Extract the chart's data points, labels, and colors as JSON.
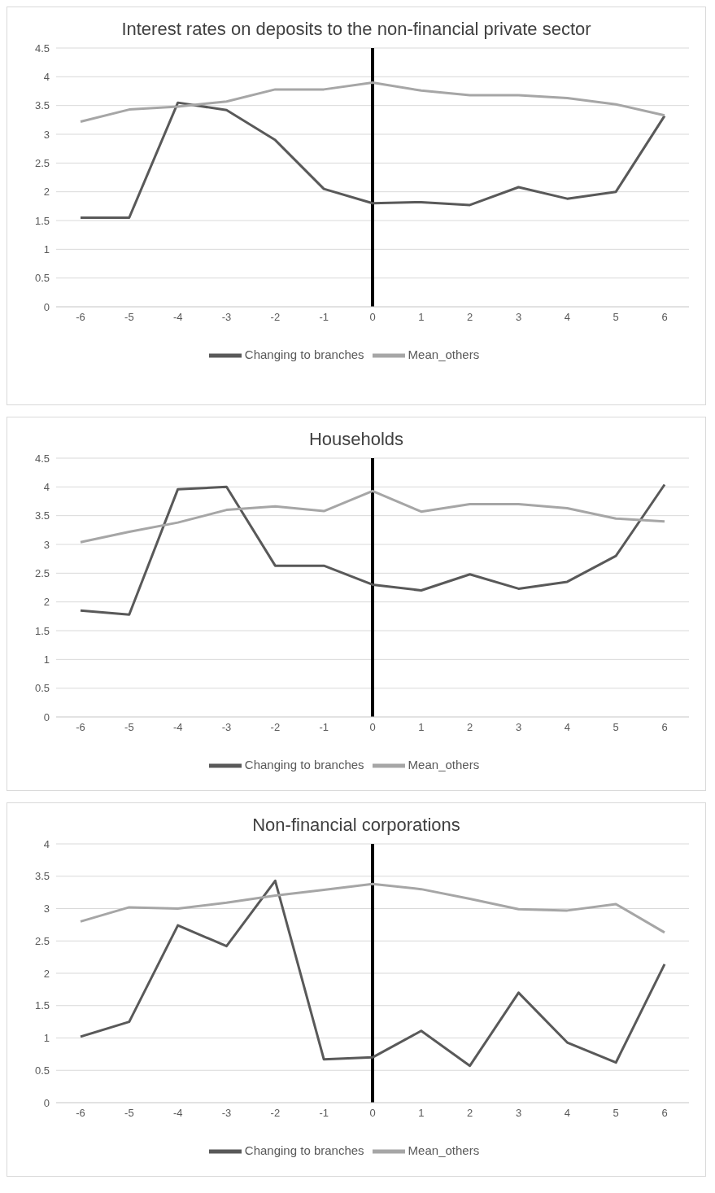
{
  "chart_data": [
    {
      "type": "line",
      "title": "Interest rates on deposits to the non-financial private sector",
      "categories": [
        "-6",
        "-5",
        "-4",
        "-3",
        "-2",
        "-1",
        "0",
        "1",
        "2",
        "3",
        "4",
        "5",
        "6"
      ],
      "series": [
        {
          "name": "Changing to branches",
          "color": "#595959",
          "values": [
            1.55,
            1.55,
            3.55,
            3.42,
            2.9,
            2.05,
            1.8,
            1.82,
            1.77,
            2.08,
            1.88,
            2.0,
            3.32
          ]
        },
        {
          "name": "Mean_others",
          "color": "#a6a6a6",
          "values": [
            3.22,
            3.43,
            3.48,
            3.57,
            3.78,
            3.78,
            3.9,
            3.76,
            3.68,
            3.68,
            3.63,
            3.52,
            3.33
          ]
        }
      ],
      "ylim": [
        0,
        4.5
      ],
      "yticks": [
        0,
        0.5,
        1,
        1.5,
        2,
        2.5,
        3,
        3.5,
        4,
        4.5
      ],
      "grid": "y",
      "legend": "bottom",
      "marker": "none",
      "line_style": "solid",
      "ref_lines": [
        {
          "axis": "x",
          "value": "0",
          "color": "#000000"
        }
      ]
    },
    {
      "type": "line",
      "title": "Households",
      "categories": [
        "-6",
        "-5",
        "-4",
        "-3",
        "-2",
        "-1",
        "0",
        "1",
        "2",
        "3",
        "4",
        "5",
        "6"
      ],
      "series": [
        {
          "name": "Changing to branches",
          "color": "#595959",
          "values": [
            1.85,
            1.78,
            3.96,
            4.0,
            2.63,
            2.63,
            2.3,
            2.2,
            2.48,
            2.23,
            2.35,
            2.8,
            4.04
          ]
        },
        {
          "name": "Mean_others",
          "color": "#a6a6a6",
          "values": [
            3.04,
            3.22,
            3.38,
            3.6,
            3.66,
            3.58,
            3.93,
            3.57,
            3.7,
            3.7,
            3.63,
            3.45,
            3.4
          ]
        }
      ],
      "ylim": [
        0,
        4.5
      ],
      "yticks": [
        0,
        0.5,
        1,
        1.5,
        2,
        2.5,
        3,
        3.5,
        4,
        4.5
      ],
      "grid": "y",
      "legend": "bottom",
      "marker": "none",
      "line_style": "solid",
      "ref_lines": [
        {
          "axis": "x",
          "value": "0",
          "color": "#000000"
        }
      ]
    },
    {
      "type": "line",
      "title": "Non-financial corporations",
      "categories": [
        "-6",
        "-5",
        "-4",
        "-3",
        "-2",
        "-1",
        "0",
        "1",
        "2",
        "3",
        "4",
        "5",
        "6"
      ],
      "series": [
        {
          "name": "Changing to branches",
          "color": "#595959",
          "values": [
            1.02,
            1.25,
            2.74,
            2.42,
            3.43,
            0.67,
            0.7,
            1.11,
            0.57,
            1.7,
            0.93,
            0.62,
            2.14
          ]
        },
        {
          "name": "Mean_others",
          "color": "#a6a6a6",
          "values": [
            2.8,
            3.02,
            3.0,
            3.09,
            3.2,
            3.29,
            3.38,
            3.3,
            3.15,
            2.99,
            2.97,
            3.07,
            2.63
          ]
        }
      ],
      "ylim": [
        0,
        4
      ],
      "yticks": [
        0,
        0.5,
        1,
        1.5,
        2,
        2.5,
        3,
        3.5,
        4
      ],
      "grid": "y",
      "legend": "bottom",
      "marker": "none",
      "line_style": "solid",
      "ref_lines": [
        {
          "axis": "x",
          "value": "0",
          "color": "#000000"
        }
      ]
    }
  ]
}
